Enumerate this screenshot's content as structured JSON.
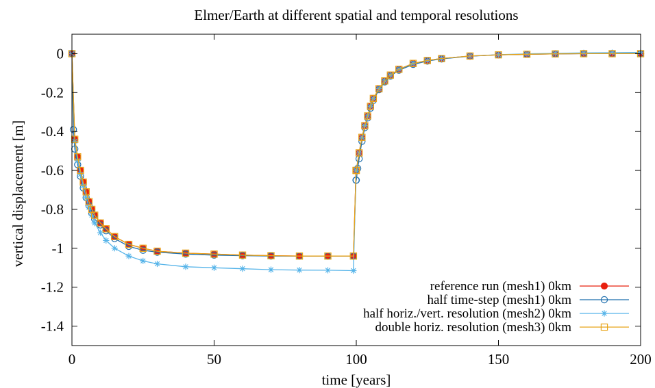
{
  "chart_data": {
    "type": "line",
    "title": "Elmer/Earth at different spatial and temporal resolutions",
    "xlabel": "time [years]",
    "ylabel": "vertical displacement [m]",
    "xlim": [
      0,
      200
    ],
    "ylim": [
      -1.5,
      0.1
    ],
    "xticks": [
      0,
      50,
      100,
      150,
      200
    ],
    "yticks": [
      0,
      -0.2,
      -0.4,
      -0.6,
      -0.8,
      -1,
      -1.2,
      -1.4
    ],
    "grid": false,
    "legend_position": "bottom-right",
    "series": [
      {
        "name": "reference run (mesh1) 0km",
        "color": "#e8200f",
        "marker": "filled-circle",
        "x": [
          0,
          1,
          2,
          3,
          4,
          5,
          6,
          7,
          8,
          10,
          12,
          15,
          20,
          25,
          30,
          40,
          50,
          60,
          70,
          80,
          90,
          99,
          99.9,
          100,
          101,
          102,
          103,
          104,
          105,
          106,
          108,
          110,
          112,
          115,
          120,
          125,
          130,
          140,
          150,
          160,
          170,
          180,
          190,
          200
        ],
        "y": [
          0,
          -0.44,
          -0.53,
          -0.6,
          -0.66,
          -0.71,
          -0.76,
          -0.8,
          -0.83,
          -0.87,
          -0.9,
          -0.94,
          -0.98,
          -1.0,
          -1.015,
          -1.025,
          -1.03,
          -1.035,
          -1.038,
          -1.04,
          -1.04,
          -1.04,
          -0.6,
          -0.6,
          -0.51,
          -0.43,
          -0.37,
          -0.32,
          -0.27,
          -0.23,
          -0.18,
          -0.14,
          -0.11,
          -0.08,
          -0.05,
          -0.035,
          -0.025,
          -0.012,
          -0.006,
          -0.003,
          -0.001,
          0,
          0,
          0
        ]
      },
      {
        "name": "half time-step (mesh1) 0km",
        "color": "#1f6fae",
        "marker": "open-circle",
        "x": [
          0,
          0.5,
          1,
          2,
          3,
          4,
          5,
          6,
          7,
          8,
          10,
          12,
          15,
          20,
          25,
          30,
          40,
          50,
          60,
          70,
          80,
          90,
          99,
          99.9,
          100,
          100.5,
          101,
          102,
          103,
          104,
          105,
          106,
          108,
          110,
          112,
          115,
          120,
          125,
          130,
          140,
          150,
          160,
          170,
          180,
          190,
          200
        ],
        "y": [
          0,
          -0.39,
          -0.49,
          -0.57,
          -0.63,
          -0.69,
          -0.74,
          -0.78,
          -0.82,
          -0.85,
          -0.88,
          -0.91,
          -0.95,
          -0.99,
          -1.01,
          -1.02,
          -1.03,
          -1.035,
          -1.038,
          -1.04,
          -1.04,
          -1.04,
          -1.04,
          -0.65,
          -0.65,
          -0.59,
          -0.54,
          -0.45,
          -0.38,
          -0.33,
          -0.28,
          -0.24,
          -0.185,
          -0.145,
          -0.115,
          -0.085,
          -0.055,
          -0.038,
          -0.027,
          -0.013,
          -0.006,
          -0.003,
          -0.001,
          0,
          0,
          0
        ]
      },
      {
        "name": "half horiz./vert. resolution (mesh2) 0km",
        "color": "#56b4e9",
        "marker": "star",
        "x": [
          0,
          1,
          2,
          3,
          4,
          5,
          6,
          7,
          8,
          10,
          12,
          15,
          20,
          25,
          30,
          40,
          50,
          60,
          70,
          80,
          90,
          99,
          99.9,
          100,
          101,
          102,
          103,
          104,
          105,
          106,
          108,
          110,
          112,
          115,
          120,
          125,
          130,
          140,
          150,
          160,
          170,
          180,
          190,
          200
        ],
        "y": [
          0,
          -0.45,
          -0.55,
          -0.62,
          -0.68,
          -0.74,
          -0.79,
          -0.83,
          -0.87,
          -0.92,
          -0.96,
          -1.0,
          -1.04,
          -1.065,
          -1.08,
          -1.095,
          -1.1,
          -1.105,
          -1.11,
          -1.112,
          -1.113,
          -1.115,
          -0.6,
          -0.6,
          -0.51,
          -0.43,
          -0.37,
          -0.32,
          -0.27,
          -0.23,
          -0.18,
          -0.14,
          -0.11,
          -0.08,
          -0.05,
          -0.035,
          -0.025,
          -0.012,
          -0.005,
          -0.001,
          0.002,
          0.004,
          0.005,
          0.006
        ]
      },
      {
        "name": "double horiz. resolution (mesh3) 0km",
        "color": "#e8a317",
        "marker": "open-square",
        "x": [
          0,
          1,
          2,
          3,
          4,
          5,
          6,
          7,
          8,
          10,
          12,
          15,
          20,
          25,
          30,
          40,
          50,
          60,
          70,
          80,
          90,
          99,
          99.9,
          100,
          101,
          102,
          103,
          104,
          105,
          106,
          108,
          110,
          112,
          115,
          120,
          125,
          130,
          140,
          150,
          160,
          170,
          180,
          190,
          200
        ],
        "y": [
          0,
          -0.44,
          -0.53,
          -0.6,
          -0.66,
          -0.71,
          -0.76,
          -0.8,
          -0.83,
          -0.87,
          -0.9,
          -0.94,
          -0.98,
          -1.0,
          -1.015,
          -1.025,
          -1.03,
          -1.035,
          -1.038,
          -1.04,
          -1.04,
          -1.04,
          -0.6,
          -0.6,
          -0.51,
          -0.43,
          -0.37,
          -0.32,
          -0.27,
          -0.23,
          -0.18,
          -0.14,
          -0.11,
          -0.08,
          -0.05,
          -0.035,
          -0.025,
          -0.012,
          -0.006,
          -0.003,
          -0.001,
          0,
          0,
          0
        ]
      }
    ]
  }
}
